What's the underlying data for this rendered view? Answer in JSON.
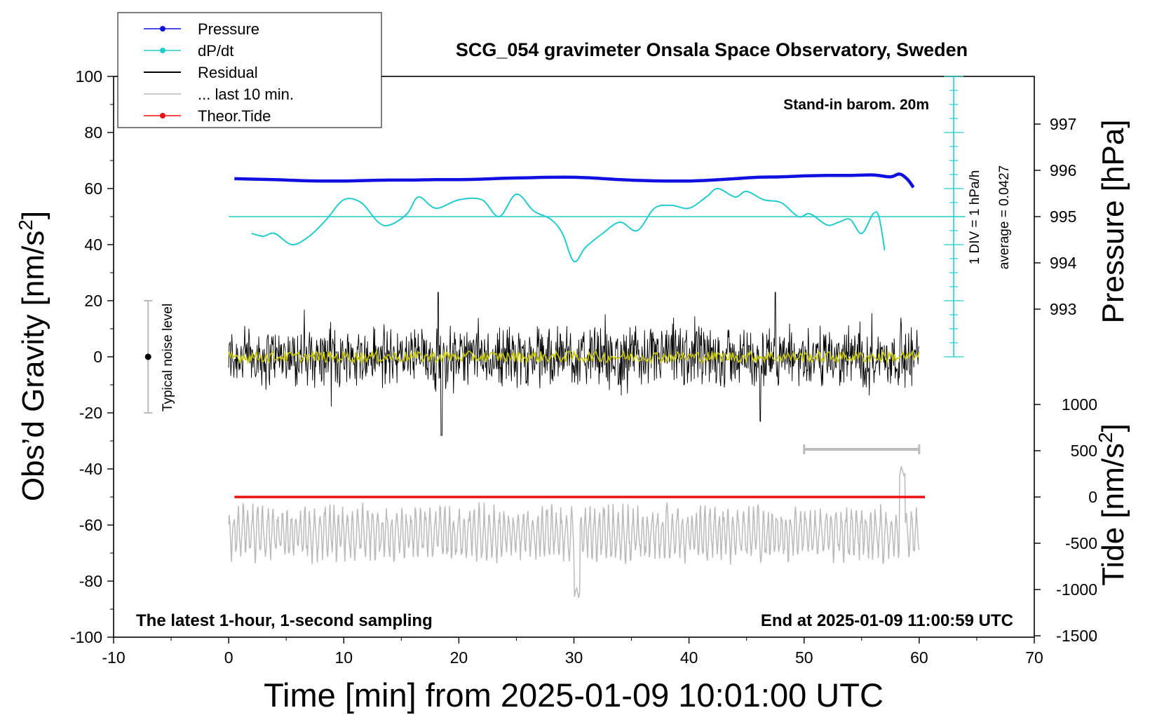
{
  "chart_data": {
    "type": "line",
    "title": "SCG_054 gravimeter Onsala Space Observatory, Sweden",
    "xlabel": "Time [min] from 2025-01-09 10:01:00 UTC",
    "ylabel_left_main": "Obs’d Gravity [nm/s",
    "ylabel_left_sup": "2",
    "ylabel_left_end": "]",
    "ylabel_right_pressure": "Pressure [hPa]",
    "ylabel_right_tide_main": "Tide [nm/s",
    "ylabel_right_tide_sup": "2",
    "ylabel_right_tide_end": "]",
    "xlim": [
      -10,
      70
    ],
    "ylim_left": [
      -100,
      100
    ],
    "x_ticks": [
      "-10",
      "0",
      "10",
      "20",
      "30",
      "40",
      "50",
      "60",
      "70"
    ],
    "y_ticks_left": [
      "100",
      "80",
      "60",
      "40",
      "20",
      "0",
      "-20",
      "-40",
      "-60",
      "-80",
      "-100"
    ],
    "pressure_ticks": [
      "997",
      "996",
      "995",
      "994",
      "993"
    ],
    "tide_ticks": [
      "1000",
      "500",
      "0",
      "-500",
      "-1000",
      "-1500"
    ],
    "annotations": {
      "stand_in": "Stand-in barom. 20m",
      "div_label": "1 DIV = 1 hPa/h",
      "average_label": "average = 0.0427",
      "noise_label": "Typical noise level",
      "bottom_left": "The latest 1-hour, 1-second sampling",
      "bottom_right": "End at 2025-01-09 11:00:59 UTC"
    },
    "legend": {
      "position": "top-left",
      "entries": [
        {
          "label": "Pressure",
          "color": "#1010e0",
          "marker": true
        },
        {
          "label": "dP/dt",
          "color": "#22cccc",
          "marker": true
        },
        {
          "label": "Residual",
          "color": "#000000",
          "marker": false
        },
        {
          "label": "... last 10 min.",
          "color": "#bbbbbb",
          "marker": false
        },
        {
          "label": "Theor.Tide",
          "color": "#ee1111",
          "marker": true
        }
      ]
    },
    "series": [
      {
        "name": "Pressure",
        "axis": "pressure_hPa",
        "color": "#1010e0",
        "x": [
          0.5,
          2,
          4,
          6,
          8,
          10,
          12,
          14,
          16,
          18,
          20,
          22,
          24,
          26,
          28,
          30,
          32,
          34,
          36,
          38,
          40,
          42,
          44,
          46,
          48,
          50,
          52,
          54,
          56,
          57.5,
          58.3,
          59,
          59.5
        ],
        "y": [
          995.82,
          995.81,
          995.8,
          995.78,
          995.77,
          995.77,
          995.78,
          995.79,
          995.79,
          995.8,
          995.8,
          995.81,
          995.83,
          995.84,
          995.85,
          995.85,
          995.83,
          995.8,
          995.78,
          995.77,
          995.77,
          995.79,
          995.82,
          995.85,
          995.86,
          995.88,
          995.89,
          995.89,
          995.9,
          995.86,
          995.92,
          995.8,
          995.63
        ]
      },
      {
        "name": "dP/dt",
        "axis": "left_nm_s2",
        "color": "#22cccc",
        "x": [
          2,
          3,
          4,
          5.5,
          7,
          8.5,
          10,
          11.5,
          13,
          14,
          15.5,
          16.5,
          18,
          20,
          22,
          23.5,
          25,
          26.5,
          28,
          29,
          30,
          31,
          32.5,
          34,
          35.5,
          37,
          38.5,
          40,
          41.5,
          42.5,
          44,
          45,
          46.5,
          48,
          49.5,
          50.5,
          52,
          53,
          54,
          55,
          56,
          56.5,
          57
        ],
        "y": [
          44,
          43,
          44,
          40,
          43,
          49,
          56,
          55,
          48,
          47,
          51,
          57,
          53,
          56,
          56,
          50,
          58,
          52,
          49,
          44,
          34,
          39,
          44,
          48,
          45,
          53,
          54,
          53,
          57,
          60,
          57,
          59,
          56,
          55,
          50,
          51,
          47,
          48,
          49,
          44,
          51,
          50,
          38
        ]
      },
      {
        "name": "Residual",
        "axis": "left_nm_s2",
        "color": "#000000",
        "x_range": [
          0,
          60
        ],
        "band_amplitude_nm_s2": 16,
        "peaks": [
          {
            "x": 18.5,
            "y": -28
          },
          {
            "x": 18.2,
            "y": 23
          },
          {
            "x": 46.2,
            "y": -23
          },
          {
            "x": 47.5,
            "y": 23
          }
        ]
      },
      {
        "name": "Residual smoothed",
        "axis": "left_nm_s2",
        "color": "#c8c800",
        "x_range": [
          0,
          60
        ],
        "level": 0,
        "amplitude_nm_s2": 2
      },
      {
        "name": "... last 10 min.",
        "axis": "left_nm_s2",
        "color": "#bbbbbb",
        "x_range": [
          0,
          60
        ],
        "center": -63,
        "amplitude_nm_s2": 8,
        "peaks": [
          {
            "x": 30.3,
            "y": -84
          },
          {
            "x": 58.5,
            "y": -41
          }
        ]
      },
      {
        "name": "Theor.Tide",
        "axis": "left_nm_s2",
        "color": "#ee1111",
        "x": [
          0.5,
          60.5
        ],
        "y": [
          -50,
          -50
        ]
      }
    ],
    "reference_line": {
      "name": "dP/dt zero",
      "y": 50,
      "x_range": [
        0,
        64
      ]
    },
    "scale_bar": {
      "x": [
        50,
        60
      ],
      "y": -33
    },
    "noise_bar": {
      "x": -7,
      "y_range": [
        -20,
        20
      ],
      "center": 0
    },
    "pressure_scale": {
      "x": 63,
      "y_range": [
        0,
        100
      ],
      "ticks_every": 5
    }
  }
}
